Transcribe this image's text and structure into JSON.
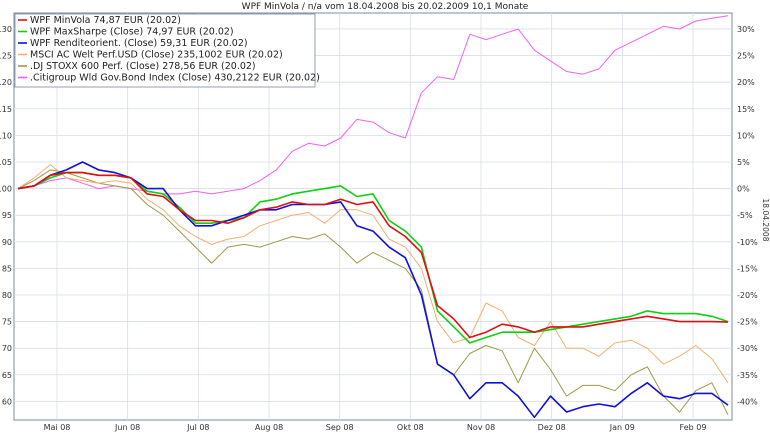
{
  "chart_data": {
    "type": "line",
    "title": "WPF MinVola / n/a vom 18.04.2008 bis 20.02.2009 10,1 Monate",
    "right_axis_label": "18.04.2008",
    "x_ticks": [
      "Mai 08",
      "Jun 08",
      "Jul 08",
      "Aug 08",
      "Sep 08",
      "Okt 08",
      "Nov 08",
      "Dez 08",
      "Jan 09",
      "Feb 09"
    ],
    "y_left": {
      "range": [
        56.5,
        133
      ],
      "ticks": [
        60,
        65,
        70,
        75,
        80,
        85,
        90,
        95,
        100,
        105,
        110,
        115,
        120,
        125,
        130
      ]
    },
    "y_right": {
      "range_percent": [
        -43.5,
        33
      ],
      "ticks": [
        "30%",
        "25%",
        "20%",
        "15%",
        "10%",
        "5%",
        "0%",
        "-5%",
        "-10%",
        "-15%",
        "-20%",
        "-25%",
        "-30%",
        "-35%",
        "-40%"
      ],
      "tick_values": [
        30,
        25,
        20,
        15,
        10,
        5,
        0,
        -5,
        -10,
        -15,
        -20,
        -25,
        -30,
        -35,
        -40
      ]
    },
    "grid": true,
    "legend_position": "top-left",
    "x_index_range": [
      0,
      44
    ],
    "series": [
      {
        "name": "WPF MinVola 74,87 EUR (20.02)",
        "color": "#e01010",
        "values": [
          100,
          100.5,
          102.5,
          103,
          103,
          102.5,
          102.5,
          102,
          99,
          98.5,
          96,
          94,
          94,
          93.5,
          94.5,
          96,
          96.5,
          97.5,
          97,
          97,
          98,
          97,
          97.5,
          93,
          91,
          88,
          78,
          75.5,
          72,
          73,
          74.5,
          74,
          73,
          74,
          74,
          74,
          74.5,
          75,
          75.5,
          76,
          75.5,
          75,
          75,
          75,
          74.9
        ]
      },
      {
        "name": "WPF MaxSharpe (Close) 74,97 EUR (20.02)",
        "color": "#10d010",
        "values": [
          100,
          100.5,
          102,
          103,
          103,
          102.5,
          102.5,
          102,
          99.5,
          99,
          96.5,
          93.5,
          93.5,
          94,
          94.5,
          97.5,
          98,
          99,
          99.5,
          100,
          100.5,
          98.5,
          99,
          94,
          92,
          89,
          77,
          74,
          71,
          72,
          73,
          73,
          73,
          73.5,
          74,
          74.5,
          75,
          75.5,
          76,
          77,
          76.5,
          76.5,
          76.5,
          76,
          75
        ]
      },
      {
        "name": "WPF Renditeorient. (Close) 59,31 EUR (20.02)",
        "color": "#1010e0",
        "values": [
          100,
          100.5,
          102.5,
          103.5,
          105,
          103.5,
          103,
          102,
          100,
          100,
          96,
          93,
          93,
          94,
          95,
          96,
          96,
          97,
          97,
          97,
          97.5,
          93,
          92,
          89,
          87,
          80,
          67,
          65,
          60.5,
          63.5,
          63.5,
          61,
          57,
          61,
          58,
          59,
          59.5,
          59,
          61.5,
          63.5,
          61,
          60.5,
          61.5,
          61.5,
          59.3
        ]
      },
      {
        "name": "MSCI AC Welt Perf.USD (Close) 235,1002 EUR (20.02)",
        "color": "#f0b070",
        "values": [
          100,
          102,
          104.5,
          102,
          101.5,
          101,
          101.5,
          101,
          98,
          96,
          93,
          91,
          89.5,
          90.5,
          91,
          93,
          94,
          95,
          95.5,
          93.5,
          96,
          96,
          95,
          90.5,
          89,
          85,
          75,
          71,
          72,
          78.5,
          77,
          72,
          70.5,
          75,
          70,
          70,
          68.5,
          71,
          71.5,
          70,
          67,
          68.5,
          70.5,
          68,
          63.5
        ]
      },
      {
        "name": ".DJ STOXX 600 Perf. (Close) 278,56 EUR (20.02)",
        "color": "#a09848",
        "values": [
          100,
          101.5,
          103.5,
          103,
          102,
          101,
          100.5,
          100,
          97,
          95,
          92,
          89,
          86,
          89,
          89.5,
          89,
          90,
          91,
          90.5,
          91.5,
          89,
          86,
          88,
          86.5,
          85,
          81,
          67,
          65,
          69,
          70.5,
          69.5,
          63.5,
          70,
          66,
          61,
          63,
          63,
          62,
          65,
          66.5,
          61,
          58,
          62,
          63.5,
          57.5
        ]
      },
      {
        "name": ".Citigroup Wld Gov.Bond Index (Close) 430,2122 EUR (20.02)",
        "color": "#f060f0",
        "values": [
          100,
          100.5,
          101.5,
          102,
          101,
          100,
          100.5,
          100,
          99.5,
          99,
          99,
          99.5,
          99,
          99.5,
          100,
          101.5,
          103.5,
          107,
          108.5,
          108,
          109.5,
          113,
          112.5,
          110.5,
          109.5,
          118,
          121,
          120.5,
          129,
          128,
          129,
          130,
          126,
          124,
          122,
          121.5,
          122.5,
          126,
          127.5,
          129,
          130.5,
          130,
          131.5,
          132,
          132.5
        ]
      }
    ]
  }
}
